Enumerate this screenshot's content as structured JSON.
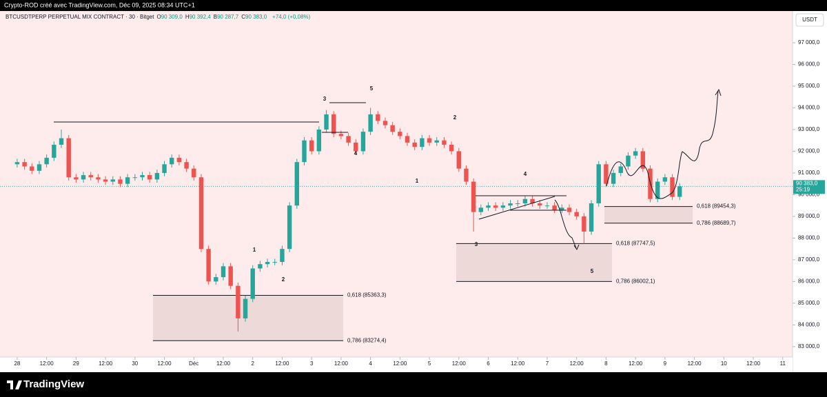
{
  "top_bar": "Crypto-ROD créé avec TradingView.com, Déc 09, 2025 08:34 UTC+1",
  "footer": "TradingView",
  "chart_data": {
    "type": "candlestick",
    "symbol": "BTCUSDTPERP PERPETUAL MIX CONTRACT · 30 · Bitget",
    "ohlc": [
      {
        "key": "O",
        "value": "90 309,0"
      },
      {
        "key": "H",
        "value": "90 392,4"
      },
      {
        "key": "B",
        "value": "90 287,7"
      },
      {
        "key": "C",
        "value": "90 383,0"
      }
    ],
    "change": "+74,0 (+0,08%)",
    "currency": "USDT",
    "last_price": {
      "value": 90383,
      "label": "90 383,0"
    },
    "countdown": "25:19",
    "up_color": "#26a69a",
    "down_color": "#ef5350",
    "x": [
      0,
      3,
      6,
      9,
      12,
      15,
      18,
      21,
      24,
      27,
      30,
      33,
      36,
      39,
      42,
      45,
      48,
      51,
      54,
      57,
      60,
      63,
      66,
      69,
      72,
      75,
      78,
      81,
      84,
      87,
      90,
      93,
      96,
      99,
      102,
      105,
      108,
      111,
      114,
      117,
      120,
      123,
      126,
      129,
      132,
      135,
      138,
      141,
      144,
      147,
      150,
      153,
      156,
      159,
      162,
      165,
      168,
      171,
      174,
      177,
      180,
      183,
      186,
      189,
      192,
      195,
      198,
      201,
      204,
      207,
      210,
      213,
      216,
      219,
      222,
      225,
      228,
      231,
      234,
      237,
      240,
      243,
      246,
      249,
      252,
      255,
      258,
      261,
      264,
      267,
      270
    ],
    "open": [
      91400,
      91500,
      91300,
      91100,
      91400,
      91700,
      92300,
      92600,
      90800,
      90700,
      90900,
      90800,
      90700,
      90600,
      90700,
      90500,
      90800,
      90800,
      90900,
      90700,
      91000,
      91400,
      91700,
      91500,
      91200,
      90800,
      87500,
      86000,
      86200,
      86700,
      85800,
      84300,
      85200,
      86600,
      86800,
      86900,
      86900,
      87500,
      89500,
      91500,
      92500,
      92000,
      93000,
      93700,
      92800,
      92700,
      92400,
      92000,
      92900,
      93700,
      93400,
      93200,
      92900,
      92700,
      92400,
      92200,
      92600,
      92400,
      92500,
      92300,
      92000,
      91200,
      90600,
      89200,
      89400,
      89500,
      89400,
      89500,
      89600,
      89600,
      89800,
      89600,
      89500,
      89500,
      89300,
      89400,
      89200,
      89000,
      88300,
      89600,
      91400,
      90500,
      91000,
      91300,
      91800,
      92000,
      91200,
      89800,
      90600,
      90800,
      89900
    ],
    "high": [
      91650,
      91650,
      91450,
      91550,
      91850,
      92450,
      93000,
      92750,
      90950,
      91050,
      91050,
      90950,
      90850,
      90850,
      90850,
      90950,
      90950,
      91050,
      91050,
      91150,
      91550,
      91850,
      91850,
      91650,
      91350,
      90950,
      87650,
      86350,
      86850,
      86850,
      85950,
      85350,
      86750,
      86950,
      87050,
      87050,
      87650,
      89650,
      91650,
      92650,
      92650,
      93150,
      93900,
      93850,
      92950,
      92850,
      92550,
      93050,
      94000,
      93850,
      93550,
      93350,
      93050,
      92850,
      92550,
      92750,
      92750,
      92650,
      92650,
      92450,
      92150,
      91350,
      90750,
      89550,
      89650,
      89650,
      89650,
      89750,
      89750,
      89950,
      89950,
      89750,
      89650,
      89650,
      89550,
      89550,
      89350,
      89150,
      89750,
      91550,
      91550,
      91150,
      91450,
      91950,
      92150,
      92150,
      91350,
      90750,
      90950,
      90950,
      90533
    ],
    "low": [
      91250,
      91150,
      90950,
      90950,
      91250,
      91550,
      92150,
      90650,
      90550,
      90550,
      90650,
      90550,
      90450,
      90450,
      90350,
      90350,
      90650,
      90650,
      90550,
      90550,
      90850,
      91250,
      91350,
      91050,
      90650,
      87350,
      85850,
      85850,
      86050,
      85650,
      83700,
      84150,
      85050,
      86450,
      86650,
      86750,
      86750,
      87350,
      89350,
      91350,
      91850,
      91850,
      92850,
      92650,
      92550,
      92250,
      91850,
      91850,
      92750,
      93250,
      93050,
      92750,
      92550,
      92250,
      92050,
      92050,
      92250,
      92250,
      92150,
      91850,
      91050,
      90450,
      88300,
      89050,
      89250,
      89250,
      89250,
      89350,
      89450,
      89450,
      89450,
      89350,
      89350,
      89150,
      89150,
      89050,
      88850,
      87750,
      88150,
      89450,
      90350,
      90350,
      90850,
      91150,
      91650,
      91050,
      89650,
      89650,
      90450,
      89750,
      89750
    ],
    "close": [
      91500,
      91300,
      91100,
      91400,
      91700,
      92300,
      92600,
      90800,
      90700,
      90900,
      90800,
      90700,
      90600,
      90700,
      90500,
      90800,
      90800,
      90900,
      90700,
      91000,
      91400,
      91700,
      91500,
      91200,
      90800,
      87500,
      86000,
      86200,
      86700,
      85800,
      84300,
      85200,
      86600,
      86800,
      86900,
      86900,
      87500,
      89500,
      91500,
      92500,
      92000,
      93000,
      93700,
      92800,
      92700,
      92400,
      92000,
      92900,
      93700,
      93400,
      93200,
      92900,
      92700,
      92400,
      92200,
      92600,
      92400,
      92500,
      92300,
      92000,
      91200,
      90600,
      89200,
      89400,
      89500,
      89400,
      89500,
      89600,
      89600,
      89800,
      89600,
      89500,
      89500,
      89300,
      89400,
      89200,
      89000,
      88300,
      89600,
      91400,
      90500,
      91000,
      91300,
      91800,
      92000,
      91200,
      89800,
      90600,
      90800,
      89900,
      90383
    ],
    "xlim": [
      -7,
      316
    ],
    "xticks": [
      {
        "value": 0,
        "label": "28"
      },
      {
        "value": 12,
        "label": "12:00"
      },
      {
        "value": 24,
        "label": "29"
      },
      {
        "value": 36,
        "label": "12:00"
      },
      {
        "value": 48,
        "label": "30"
      },
      {
        "value": 60,
        "label": "12:00"
      },
      {
        "value": 72,
        "label": "Déc"
      },
      {
        "value": 84,
        "label": "12:00"
      },
      {
        "value": 96,
        "label": "2"
      },
      {
        "value": 108,
        "label": "12:00"
      },
      {
        "value": 120,
        "label": "3"
      },
      {
        "value": 132,
        "label": "12:00"
      },
      {
        "value": 144,
        "label": "4"
      },
      {
        "value": 156,
        "label": "12:00"
      },
      {
        "value": 168,
        "label": "5"
      },
      {
        "value": 180,
        "label": "12:00"
      },
      {
        "value": 192,
        "label": "6"
      },
      {
        "value": 204,
        "label": "12:00"
      },
      {
        "value": 216,
        "label": "7"
      },
      {
        "value": 228,
        "label": "12:00"
      },
      {
        "value": 240,
        "label": "8"
      },
      {
        "value": 252,
        "label": "12:00"
      },
      {
        "value": 264,
        "label": "9"
      },
      {
        "value": 276,
        "label": "12:00"
      },
      {
        "value": 288,
        "label": "10"
      },
      {
        "value": 300,
        "label": "12:00"
      },
      {
        "value": 312,
        "label": "11"
      }
    ],
    "ylim": [
      82520,
      98460
    ],
    "yticks": [
      {
        "value": 83000,
        "label": "83 000,0"
      },
      {
        "value": 84000,
        "label": "84 000,0"
      },
      {
        "value": 85000,
        "label": "85 000,0"
      },
      {
        "value": 86000,
        "label": "86 000,0"
      },
      {
        "value": 87000,
        "label": "87 000,0"
      },
      {
        "value": 88000,
        "label": "88 000,0"
      },
      {
        "value": 89000,
        "label": "89 000,0"
      },
      {
        "value": 90000,
        "label": "90 000,0"
      },
      {
        "value": 91000,
        "label": "91 000,0"
      },
      {
        "value": 92000,
        "label": "92 000,0"
      },
      {
        "value": 93000,
        "label": "93 000,0"
      },
      {
        "value": 94000,
        "label": "94 000,0"
      },
      {
        "value": 95000,
        "label": "95 000,0"
      },
      {
        "value": 96000,
        "label": "96 000,0"
      },
      {
        "value": 97000,
        "label": "97 000,0"
      }
    ],
    "fib_zones": [
      [
        {
          "value": 85363.3,
          "label": "0,618 (85363,3)"
        },
        {
          "value": 83274.4,
          "label": "0,786 (83274,4)"
        }
      ],
      [
        {
          "value": 87747.5,
          "label": "0,618 (87747,5)"
        },
        {
          "value": 86002.1,
          "label": "0,786 (86002,1)"
        }
      ],
      [
        {
          "value": 89454.3,
          "label": "0,618 (89454,3)"
        },
        {
          "value": 88689.7,
          "label": "0,786 (88689,7)"
        }
      ]
    ],
    "wave_labels": [
      "3",
      "5",
      "4",
      "1",
      "2",
      "2",
      "1",
      "4",
      "3",
      "5"
    ]
  }
}
